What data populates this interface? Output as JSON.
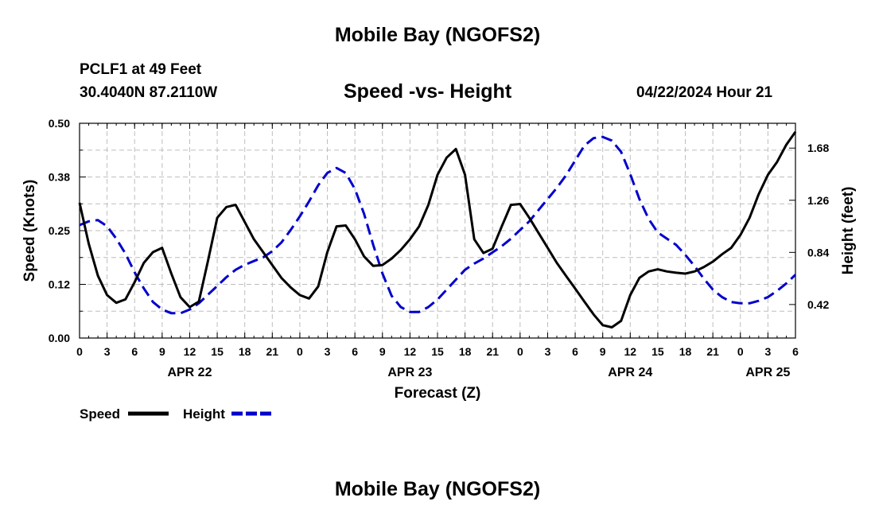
{
  "title_top": "Mobile Bay (NGOFS2)",
  "title_bottom": "Mobile Bay (NGOFS2)",
  "station": "PCLF1 at 49 Feet",
  "coords": "30.4040N  87.2110W",
  "subtitle": "Speed -vs- Height",
  "datetime": "04/22/2024 Hour 21",
  "legend": {
    "speed_label": "Speed",
    "height_label": "Height"
  },
  "colors": {
    "speed": "#000000",
    "height": "#0000cc",
    "grid": "#bdbdbd"
  },
  "chart_data": {
    "type": "line",
    "title": "Speed -vs- Height",
    "xlabel": "Forecast (Z)",
    "ylabel": "Speed (Knots)",
    "y2label": "Height (feet)",
    "xlim": [
      0,
      78
    ],
    "ylim": [
      0,
      0.5
    ],
    "y2lim": [
      0.15,
      1.88
    ],
    "x_tick_values": [
      0,
      3,
      6,
      9,
      12,
      15,
      18,
      21,
      24,
      27,
      30,
      33,
      36,
      39,
      42,
      45,
      48,
      51,
      54,
      57,
      60,
      63,
      66,
      69,
      72,
      75,
      78
    ],
    "x_tick_labels": [
      "0",
      "3",
      "6",
      "9",
      "12",
      "15",
      "18",
      "21",
      "0",
      "3",
      "6",
      "9",
      "12",
      "15",
      "18",
      "21",
      "0",
      "3",
      "6",
      "9",
      "12",
      "15",
      "18",
      "21",
      "0",
      "3",
      "6"
    ],
    "y_ticks": [
      {
        "value": 0.0,
        "label": "0.00"
      },
      {
        "value": 0.125,
        "label": "0.12"
      },
      {
        "value": 0.25,
        "label": "0.25"
      },
      {
        "value": 0.375,
        "label": "0.38"
      },
      {
        "value": 0.5,
        "label": "0.50"
      }
    ],
    "y2_ticks": [
      {
        "value": 0.42,
        "label": "0.42"
      },
      {
        "value": 0.84,
        "label": "0.84"
      },
      {
        "value": 1.26,
        "label": "1.26"
      },
      {
        "value": 1.68,
        "label": "1.68"
      }
    ],
    "day_labels": [
      {
        "x": 12,
        "label": "APR 22"
      },
      {
        "x": 36,
        "label": "APR 23"
      },
      {
        "x": 60,
        "label": "APR 24"
      },
      {
        "x": 75,
        "label": "APR 25"
      }
    ],
    "series": [
      {
        "name": "Speed",
        "axis": "left",
        "style": "solid",
        "x": [
          0,
          1,
          2,
          3,
          4,
          5,
          6,
          7,
          8,
          9,
          10,
          11,
          12,
          13,
          14,
          15,
          16,
          17,
          18,
          19,
          20,
          21,
          22,
          23,
          24,
          25,
          26,
          27,
          28,
          29,
          30,
          31,
          32,
          33,
          34,
          35,
          36,
          37,
          38,
          39,
          40,
          41,
          42,
          43,
          44,
          45,
          46,
          47,
          48,
          49,
          50,
          51,
          52,
          53,
          54,
          55,
          56,
          57,
          58,
          59,
          60,
          61,
          62,
          63,
          64,
          65,
          66,
          67,
          68,
          69,
          70,
          71,
          72,
          73,
          74,
          75,
          76,
          77,
          78
        ],
        "values": [
          0.315,
          0.22,
          0.145,
          0.1,
          0.082,
          0.09,
          0.13,
          0.175,
          0.2,
          0.21,
          0.15,
          0.095,
          0.072,
          0.085,
          0.18,
          0.28,
          0.305,
          0.31,
          0.27,
          0.23,
          0.2,
          0.17,
          0.14,
          0.118,
          0.1,
          0.092,
          0.12,
          0.2,
          0.26,
          0.262,
          0.23,
          0.19,
          0.168,
          0.17,
          0.185,
          0.205,
          0.23,
          0.26,
          0.31,
          0.38,
          0.42,
          0.44,
          0.38,
          0.23,
          0.198,
          0.208,
          0.26,
          0.31,
          0.312,
          0.28,
          0.245,
          0.21,
          0.175,
          0.145,
          0.115,
          0.085,
          0.055,
          0.03,
          0.025,
          0.04,
          0.1,
          0.14,
          0.155,
          0.16,
          0.155,
          0.152,
          0.15,
          0.155,
          0.165,
          0.178,
          0.195,
          0.21,
          0.24,
          0.28,
          0.335,
          0.38,
          0.41,
          0.45,
          0.48
        ]
      },
      {
        "name": "Height",
        "axis": "right",
        "style": "dashed",
        "x": [
          0,
          1,
          2,
          3,
          4,
          5,
          6,
          7,
          8,
          9,
          10,
          11,
          12,
          13,
          14,
          15,
          16,
          17,
          18,
          19,
          20,
          21,
          22,
          23,
          24,
          25,
          26,
          27,
          28,
          29,
          30,
          31,
          32,
          33,
          34,
          35,
          36,
          37,
          38,
          39,
          40,
          41,
          42,
          43,
          44,
          45,
          46,
          47,
          48,
          49,
          50,
          51,
          52,
          53,
          54,
          55,
          56,
          57,
          58,
          59,
          60,
          61,
          62,
          63,
          64,
          65,
          66,
          67,
          68,
          69,
          70,
          71,
          72,
          73,
          74,
          75,
          76,
          77,
          78
        ],
        "values": [
          1.06,
          1.09,
          1.1,
          1.05,
          0.95,
          0.83,
          0.68,
          0.55,
          0.44,
          0.38,
          0.35,
          0.35,
          0.38,
          0.43,
          0.5,
          0.57,
          0.64,
          0.7,
          0.74,
          0.77,
          0.8,
          0.85,
          0.92,
          1.02,
          1.13,
          1.25,
          1.38,
          1.48,
          1.52,
          1.48,
          1.35,
          1.15,
          0.9,
          0.67,
          0.49,
          0.4,
          0.36,
          0.36,
          0.4,
          0.46,
          0.54,
          0.62,
          0.7,
          0.75,
          0.79,
          0.84,
          0.89,
          0.95,
          1.02,
          1.09,
          1.18,
          1.27,
          1.36,
          1.46,
          1.58,
          1.7,
          1.76,
          1.77,
          1.74,
          1.65,
          1.47,
          1.27,
          1.11,
          1.0,
          0.95,
          0.9,
          0.82,
          0.73,
          0.63,
          0.54,
          0.48,
          0.44,
          0.43,
          0.43,
          0.45,
          0.48,
          0.53,
          0.59,
          0.66
        ]
      }
    ],
    "grid": true,
    "legend_position": "bottom-left"
  }
}
